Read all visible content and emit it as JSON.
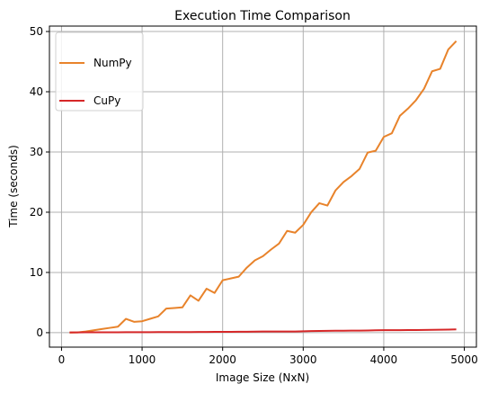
{
  "chart_data": {
    "type": "line",
    "title": "Execution Time Comparison",
    "xlabel": "Image Size (NxN)",
    "ylabel": "Time (seconds)",
    "xlim": [
      -150,
      5150
    ],
    "ylim": [
      -2.4,
      50.9
    ],
    "xticks": [
      0,
      1000,
      2000,
      3000,
      4000,
      5000
    ],
    "yticks": [
      0,
      10,
      20,
      30,
      40,
      50
    ],
    "grid": true,
    "legend_position": "upper-left",
    "x": [
      100,
      200,
      300,
      400,
      500,
      600,
      700,
      800,
      900,
      1000,
      1100,
      1200,
      1300,
      1400,
      1500,
      1600,
      1700,
      1800,
      1900,
      2000,
      2100,
      2200,
      2300,
      2400,
      2500,
      2600,
      2700,
      2800,
      2900,
      3000,
      3100,
      3200,
      3300,
      3400,
      3500,
      3600,
      3700,
      3800,
      3900,
      4000,
      4100,
      4200,
      4300,
      4400,
      4500,
      4600,
      4700,
      4800,
      4900
    ],
    "series": [
      {
        "name": "NumPy",
        "color": "#e8832b",
        "values": [
          0.0,
          0.05,
          0.2,
          0.4,
          0.6,
          0.8,
          1.0,
          2.3,
          1.8,
          1.9,
          2.3,
          2.7,
          4.0,
          4.1,
          4.2,
          6.2,
          5.3,
          7.3,
          6.6,
          8.7,
          9.0,
          9.3,
          10.8,
          12.0,
          12.7,
          13.8,
          14.8,
          16.9,
          16.6,
          17.9,
          20.0,
          21.5,
          21.1,
          23.6,
          25.0,
          26.0,
          27.2,
          29.9,
          30.2,
          32.5,
          33.1,
          36.0,
          37.2,
          38.6,
          40.5,
          43.4,
          43.8,
          47.0,
          48.4
        ]
      },
      {
        "name": "CuPy",
        "color": "#d62728",
        "values": [
          0.05,
          0.05,
          0.06,
          0.06,
          0.07,
          0.07,
          0.07,
          0.08,
          0.08,
          0.09,
          0.09,
          0.1,
          0.1,
          0.1,
          0.11,
          0.11,
          0.12,
          0.12,
          0.13,
          0.14,
          0.14,
          0.15,
          0.16,
          0.17,
          0.2,
          0.2,
          0.19,
          0.19,
          0.2,
          0.24,
          0.26,
          0.28,
          0.3,
          0.32,
          0.33,
          0.34,
          0.34,
          0.37,
          0.4,
          0.41,
          0.41,
          0.42,
          0.43,
          0.44,
          0.46,
          0.48,
          0.5,
          0.52,
          0.55
        ]
      }
    ]
  }
}
